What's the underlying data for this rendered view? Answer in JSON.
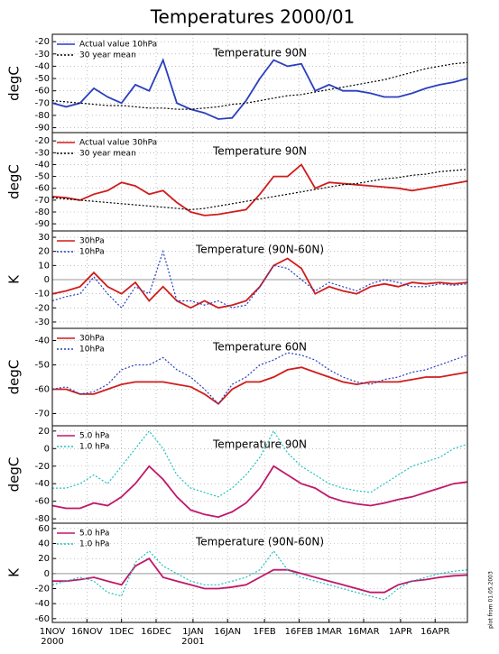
{
  "title": "Temperatures 2000/01",
  "side_note": "plot from 01.05.2003",
  "x_axis": {
    "x": [
      "2000-11-01",
      "2000-11-07",
      "2000-11-13",
      "2000-11-19",
      "2000-11-25",
      "2000-12-01",
      "2000-12-07",
      "2000-12-13",
      "2000-12-19",
      "2000-12-25",
      "2000-12-31",
      "2001-01-06",
      "2001-01-12",
      "2001-01-18",
      "2001-01-24",
      "2001-01-30",
      "2001-02-05",
      "2001-02-11",
      "2001-02-17",
      "2001-02-23",
      "2001-03-01",
      "2001-03-07",
      "2001-03-13",
      "2001-03-19",
      "2001-03-25",
      "2001-03-31",
      "2001-04-06",
      "2001-04-12",
      "2001-04-18",
      "2001-04-24",
      "2001-04-30"
    ],
    "xlim": [
      "2000-11-01",
      "2001-04-30"
    ],
    "xticks": [
      {
        "value": "2000-11-01",
        "label": "1NOV"
      },
      {
        "value": "2000-11-16",
        "label": "16NOV"
      },
      {
        "value": "2000-12-01",
        "label": "1DEC"
      },
      {
        "value": "2000-12-16",
        "label": "16DEC"
      },
      {
        "value": "2001-01-01",
        "label": "1JAN"
      },
      {
        "value": "2001-01-16",
        "label": "16JAN"
      },
      {
        "value": "2001-02-01",
        "label": "1FEB"
      },
      {
        "value": "2001-02-16",
        "label": "16FEB"
      },
      {
        "value": "2001-03-01",
        "label": "1MAR"
      },
      {
        "value": "2001-03-16",
        "label": "16MAR"
      },
      {
        "value": "2001-04-01",
        "label": "1APR"
      },
      {
        "value": "2001-04-16",
        "label": "16APR"
      }
    ],
    "year_labels": [
      {
        "value": "2000-11-01",
        "label": "2000"
      },
      {
        "value": "2001-01-01",
        "label": "2001"
      }
    ]
  },
  "chart_data": [
    {
      "type": "line",
      "title": "Temperature 90N",
      "ylabel": "degC",
      "ylim": [
        -94,
        -14
      ],
      "yticks": [
        -20,
        -30,
        -40,
        -50,
        -60,
        -70,
        -80,
        -90
      ],
      "grid": true,
      "zero_line": false,
      "series": [
        {
          "name": "Actual value 10hPa",
          "color": "#2a3fbf",
          "style": "solid",
          "values": [
            -70,
            -73,
            -70,
            -58,
            -65,
            -70,
            -55,
            -60,
            -35,
            -70,
            -75,
            -78,
            -83,
            -82,
            -68,
            -50,
            -35,
            -40,
            -38,
            -60,
            -55,
            -60,
            -60,
            -62,
            -65,
            -65,
            -62,
            -58,
            -55,
            -53,
            -50
          ]
        },
        {
          "name": "30 year mean",
          "color": "#000000",
          "style": "dashed",
          "values": [
            -68,
            -69,
            -70,
            -71,
            -72,
            -72,
            -73,
            -74,
            -74,
            -75,
            -75,
            -74,
            -73,
            -71,
            -70,
            -68,
            -66,
            -64,
            -63,
            -61,
            -59,
            -57,
            -55,
            -53,
            -51,
            -48,
            -45,
            -42,
            -40,
            -38,
            -37
          ]
        }
      ]
    },
    {
      "type": "line",
      "title": "Temperature 90N",
      "ylabel": "degC",
      "ylim": [
        -96,
        -13
      ],
      "yticks": [
        -20,
        -30,
        -40,
        -50,
        -60,
        -70,
        -80,
        -90
      ],
      "grid": true,
      "zero_line": false,
      "series": [
        {
          "name": "Actual value 30hPa",
          "color": "#d01c1c",
          "style": "solid",
          "values": [
            -67,
            -68,
            -70,
            -65,
            -62,
            -55,
            -58,
            -65,
            -62,
            -72,
            -80,
            -83,
            -82,
            -80,
            -78,
            -65,
            -50,
            -50,
            -40,
            -60,
            -55,
            -56,
            -57,
            -58,
            -59,
            -60,
            -62,
            -60,
            -58,
            -56,
            -54
          ]
        },
        {
          "name": "30 year mean",
          "color": "#000000",
          "style": "dashed",
          "values": [
            -68,
            -69,
            -70,
            -71,
            -72,
            -73,
            -74,
            -75,
            -76,
            -77,
            -78,
            -77,
            -75,
            -73,
            -71,
            -69,
            -67,
            -65,
            -63,
            -61,
            -59,
            -57,
            -56,
            -54,
            -52,
            -51,
            -49,
            -48,
            -46,
            -45,
            -44
          ]
        }
      ]
    },
    {
      "type": "line",
      "title": "Temperature (90N-60N)",
      "ylabel": "K",
      "ylim": [
        -34.5,
        34.5
      ],
      "yticks": [
        30,
        20,
        10,
        0,
        -10,
        -20,
        -30
      ],
      "grid": true,
      "zero_line": true,
      "series": [
        {
          "name": "30hPa",
          "color": "#d01c1c",
          "style": "solid",
          "values": [
            -10,
            -8,
            -5,
            5,
            -5,
            -10,
            -2,
            -15,
            -5,
            -15,
            -20,
            -15,
            -20,
            -18,
            -15,
            -5,
            10,
            15,
            8,
            -10,
            -5,
            -8,
            -10,
            -5,
            -3,
            -5,
            -2,
            -3,
            -2,
            -3,
            -2
          ]
        },
        {
          "name": "10hPa",
          "color": "#2a3fbf",
          "style": "dashed",
          "values": [
            -15,
            -12,
            -10,
            2,
            -10,
            -20,
            -5,
            -10,
            20,
            -15,
            -15,
            -18,
            -15,
            -20,
            -18,
            -5,
            10,
            8,
            0,
            -8,
            -2,
            -5,
            -8,
            -3,
            0,
            -2,
            -5,
            -5,
            -3,
            -4,
            -3
          ]
        }
      ]
    },
    {
      "type": "line",
      "title": "Temperature 60N",
      "ylabel": "degC",
      "ylim": [
        -75,
        -35
      ],
      "yticks": [
        -40,
        -50,
        -60,
        -70
      ],
      "grid": true,
      "zero_line": false,
      "series": [
        {
          "name": "30hPa",
          "color": "#d01c1c",
          "style": "solid",
          "values": [
            -60,
            -60,
            -62,
            -62,
            -60,
            -58,
            -57,
            -57,
            -57,
            -58,
            -59,
            -62,
            -66,
            -60,
            -57,
            -57,
            -55,
            -52,
            -51,
            -53,
            -55,
            -57,
            -58,
            -57,
            -57,
            -57,
            -56,
            -55,
            -55,
            -54,
            -53
          ]
        },
        {
          "name": "10hPa",
          "color": "#2a3fbf",
          "style": "dashed",
          "values": [
            -60,
            -59,
            -62,
            -61,
            -58,
            -52,
            -50,
            -50,
            -47,
            -52,
            -55,
            -60,
            -66,
            -58,
            -55,
            -50,
            -48,
            -45,
            -46,
            -48,
            -52,
            -55,
            -57,
            -58,
            -56,
            -55,
            -53,
            -52,
            -50,
            -48,
            -46
          ]
        }
      ]
    },
    {
      "type": "line",
      "title": "Temperature 90N",
      "ylabel": "degC",
      "ylim": [
        -85,
        26
      ],
      "yticks": [
        20,
        0,
        -20,
        -40,
        -60,
        -80
      ],
      "grid": true,
      "zero_line": false,
      "series": [
        {
          "name": "5.0 hPa",
          "color": "#c0186a",
          "style": "solid",
          "values": [
            -65,
            -68,
            -68,
            -62,
            -65,
            -55,
            -40,
            -20,
            -35,
            -55,
            -70,
            -75,
            -78,
            -72,
            -62,
            -45,
            -20,
            -30,
            -40,
            -45,
            -55,
            -60,
            -63,
            -65,
            -62,
            -58,
            -55,
            -50,
            -45,
            -40,
            -38
          ]
        },
        {
          "name": "1.0 hPa",
          "color": "#20c0c0",
          "style": "dashed",
          "values": [
            -45,
            -45,
            -40,
            -30,
            -40,
            -20,
            0,
            20,
            0,
            -30,
            -45,
            -50,
            -55,
            -45,
            -30,
            -10,
            20,
            -5,
            -20,
            -30,
            -40,
            -45,
            -48,
            -50,
            -40,
            -30,
            -20,
            -15,
            -10,
            0,
            5
          ]
        }
      ]
    },
    {
      "type": "line",
      "title": "Temperature (90N-60N)",
      "ylabel": "K",
      "ylim": [
        -65,
        67
      ],
      "yticks": [
        60,
        40,
        20,
        0,
        -20,
        -40,
        -60
      ],
      "grid": true,
      "zero_line": true,
      "series": [
        {
          "name": "5.0 hPa",
          "color": "#c0186a",
          "style": "solid",
          "values": [
            -10,
            -10,
            -8,
            -5,
            -10,
            -15,
            10,
            20,
            -5,
            -10,
            -15,
            -20,
            -20,
            -18,
            -15,
            -5,
            5,
            5,
            0,
            -5,
            -10,
            -15,
            -20,
            -25,
            -25,
            -15,
            -10,
            -8,
            -5,
            -3,
            -2
          ]
        },
        {
          "name": "1.0 hPa",
          "color": "#20c0c0",
          "style": "dashed",
          "values": [
            -15,
            -10,
            -5,
            -10,
            -25,
            -30,
            15,
            30,
            10,
            0,
            -10,
            -15,
            -15,
            -10,
            -5,
            5,
            30,
            5,
            -5,
            -10,
            -15,
            -20,
            -25,
            -30,
            -35,
            -20,
            -10,
            -5,
            0,
            3,
            5
          ]
        }
      ]
    }
  ]
}
